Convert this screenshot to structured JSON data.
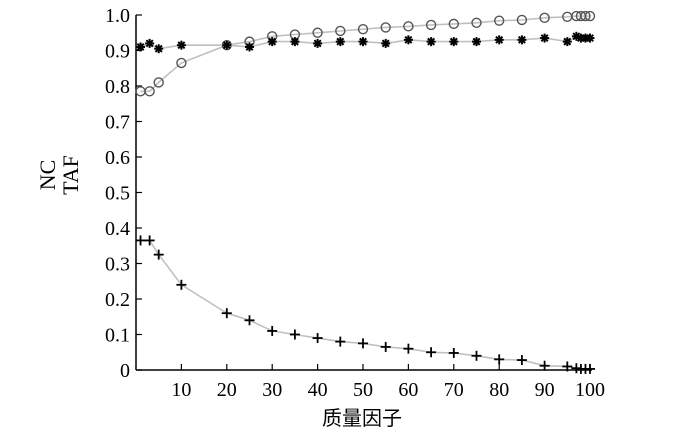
{
  "chart_data": {
    "type": "line",
    "xlabel": "质量因子",
    "ylabel_lines": [
      "NC",
      "TAF"
    ],
    "xlim": [
      0,
      100
    ],
    "ylim": [
      0,
      1.0
    ],
    "x_ticks": [
      "10",
      "20",
      "30",
      "40",
      "50",
      "60",
      "70",
      "80",
      "90",
      "100"
    ],
    "y_ticks": [
      "0",
      "0.1",
      "0.2",
      "0.3",
      "0.4",
      "0.5",
      "0.6",
      "0.7",
      "0.8",
      "0.9",
      "1.0"
    ],
    "grid": false,
    "line_color": "#c0c0c0",
    "marker_color": "#000000",
    "series": [
      {
        "marker": "circle",
        "points": [
          [
            1,
            0.785
          ],
          [
            3,
            0.785
          ],
          [
            5,
            0.81
          ],
          [
            10,
            0.865
          ],
          [
            20,
            0.915
          ],
          [
            25,
            0.925
          ],
          [
            30,
            0.94
          ],
          [
            35,
            0.945
          ],
          [
            40,
            0.95
          ],
          [
            45,
            0.955
          ],
          [
            50,
            0.96
          ],
          [
            55,
            0.965
          ],
          [
            60,
            0.968
          ],
          [
            65,
            0.972
          ],
          [
            70,
            0.975
          ],
          [
            75,
            0.978
          ],
          [
            80,
            0.984
          ],
          [
            85,
            0.986
          ],
          [
            90,
            0.992
          ],
          [
            95,
            0.995
          ],
          [
            97,
            0.997
          ],
          [
            98,
            0.997
          ],
          [
            99,
            0.997
          ],
          [
            100,
            0.997
          ]
        ]
      },
      {
        "marker": "asterisk",
        "points": [
          [
            1,
            0.91
          ],
          [
            3,
            0.92
          ],
          [
            5,
            0.905
          ],
          [
            10,
            0.915
          ],
          [
            20,
            0.915
          ],
          [
            25,
            0.91
          ],
          [
            30,
            0.925
          ],
          [
            35,
            0.925
          ],
          [
            40,
            0.92
          ],
          [
            45,
            0.925
          ],
          [
            50,
            0.925
          ],
          [
            55,
            0.92
          ],
          [
            60,
            0.93
          ],
          [
            65,
            0.925
          ],
          [
            70,
            0.925
          ],
          [
            75,
            0.925
          ],
          [
            80,
            0.93
          ],
          [
            85,
            0.93
          ],
          [
            90,
            0.935
          ],
          [
            95,
            0.925
          ],
          [
            97,
            0.94
          ],
          [
            98,
            0.935
          ],
          [
            99,
            0.935
          ],
          [
            100,
            0.935
          ]
        ]
      },
      {
        "marker": "plus",
        "points": [
          [
            1,
            0.365
          ],
          [
            3,
            0.365
          ],
          [
            5,
            0.325
          ],
          [
            10,
            0.24
          ],
          [
            20,
            0.16
          ],
          [
            25,
            0.14
          ],
          [
            30,
            0.11
          ],
          [
            35,
            0.1
          ],
          [
            40,
            0.09
          ],
          [
            45,
            0.08
          ],
          [
            50,
            0.075
          ],
          [
            55,
            0.065
          ],
          [
            60,
            0.06
          ],
          [
            65,
            0.05
          ],
          [
            70,
            0.048
          ],
          [
            75,
            0.04
          ],
          [
            80,
            0.03
          ],
          [
            85,
            0.028
          ],
          [
            90,
            0.012
          ],
          [
            95,
            0.01
          ],
          [
            97,
            0.005
          ],
          [
            98,
            0.003
          ],
          [
            99,
            0.003
          ],
          [
            100,
            0.003
          ]
        ]
      }
    ]
  }
}
